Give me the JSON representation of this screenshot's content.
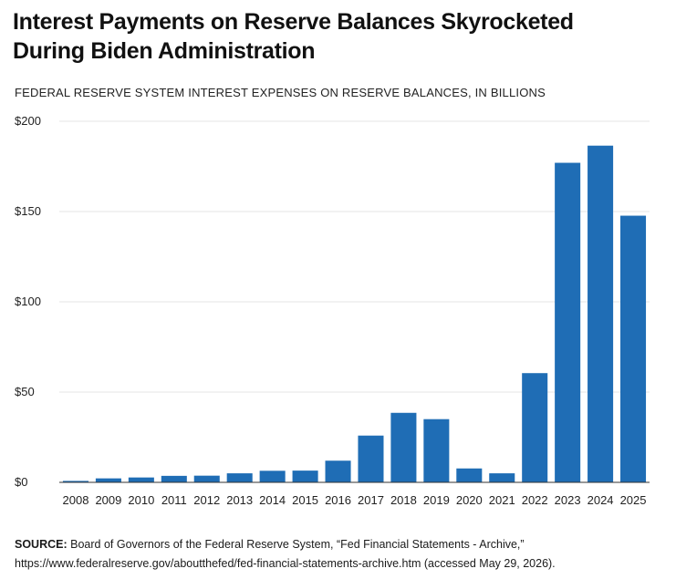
{
  "header": {
    "title": "Interest Payments on Reserve Balances Skyrocketed During Biden Administration",
    "subtitle": "FEDERAL RESERVE SYSTEM INTEREST EXPENSES ON RESERVE BALANCES, IN BILLIONS"
  },
  "footer": {
    "source_label": "SOURCE:",
    "source_text": "Board of Governors of the Federal Reserve System, “Fed Financial Statements - Archive,” https://www.federalreserve.gov/aboutthefed/fed-financial-statements-archive.htm (accessed May 29, 2026)."
  },
  "colors": {
    "bar": "#1f6db5",
    "grid": "#e6e6e6",
    "axis": "#333333"
  },
  "chart_data": {
    "type": "bar",
    "title": "Interest Payments on Reserve Balances Skyrocketed During Biden Administration",
    "subtitle": "FEDERAL RESERVE SYSTEM INTEREST EXPENSES ON RESERVE BALANCES, IN BILLIONS",
    "xlabel": "",
    "ylabel": "",
    "categories": [
      "2008",
      "2009",
      "2010",
      "2011",
      "2012",
      "2013",
      "2014",
      "2015",
      "2016",
      "2017",
      "2018",
      "2019",
      "2020",
      "2021",
      "2022",
      "2023",
      "2024",
      "2025"
    ],
    "values": [
      0.8,
      2.2,
      2.7,
      3.6,
      3.7,
      5.0,
      6.4,
      6.5,
      12.0,
      25.9,
      38.5,
      35.0,
      7.7,
      5.0,
      60.5,
      177.0,
      186.5,
      147.7
    ],
    "ylim": [
      0,
      200
    ],
    "yticks": [
      0,
      50,
      100,
      150,
      200
    ],
    "ytick_labels": [
      "$0",
      "$50",
      "$100",
      "$150",
      "$200"
    ],
    "grid": true,
    "legend": "none"
  }
}
